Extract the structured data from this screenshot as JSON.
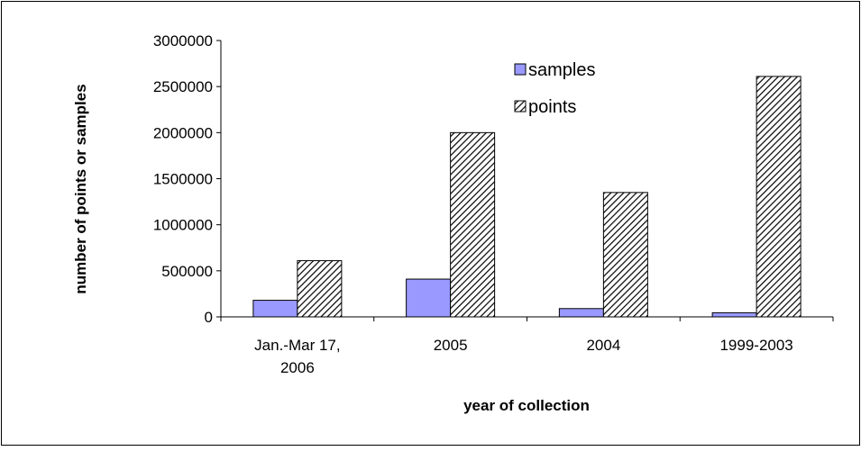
{
  "chart_data": {
    "type": "bar",
    "xlabel": "year of collection",
    "ylabel": "number of points or samples",
    "categories": [
      [
        "Jan.-Mar 17,",
        "2006"
      ],
      [
        "2005"
      ],
      [
        "2004"
      ],
      [
        "1999-2003"
      ]
    ],
    "series": [
      {
        "name": "samples",
        "values": [
          180000,
          410000,
          90000,
          45000
        ],
        "color": "#9999ff",
        "pattern": "solid"
      },
      {
        "name": "points",
        "values": [
          610000,
          2000000,
          1350000,
          2610000
        ],
        "color": "#ffffff",
        "pattern": "diagonal-hatch"
      }
    ],
    "ylim": [
      0,
      3000000
    ],
    "yticks": [
      0,
      500000,
      1000000,
      1500000,
      2000000,
      2500000,
      3000000
    ],
    "ytick_labels": [
      "0",
      "500000",
      "1000000",
      "1500000",
      "2000000",
      "2500000",
      "3000000"
    ],
    "grid": false,
    "legend_position": "top-right"
  }
}
